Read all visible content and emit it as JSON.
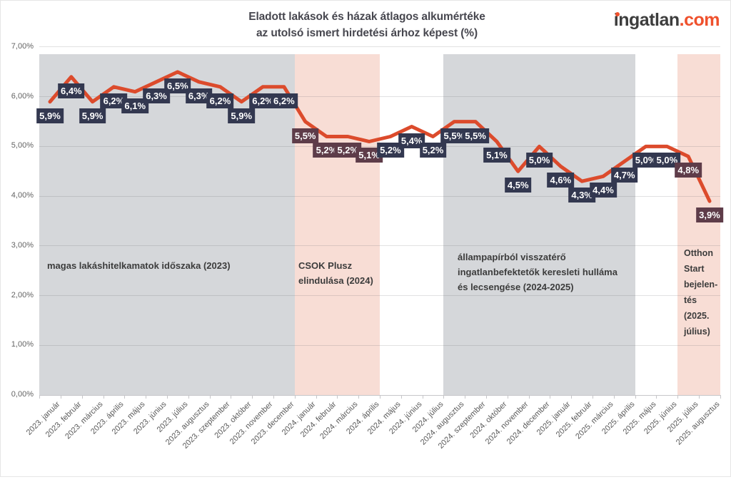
{
  "header": {
    "title_line1": "Eladott lakások és házak átlagos alkumértéke",
    "title_line2": "az utolsó ismert hirdetési árhoz képest (%)",
    "logo": {
      "brand": "ingatlan.com",
      "part1": "ingatlan",
      "part2": ".com",
      "accent_color": "#ef512d",
      "text_color": "#3d3d3d"
    }
  },
  "chart_data": {
    "type": "line",
    "title": "Eladott lakások és házak átlagos alkumértéke az utolsó ismert hirdetési árhoz képest (%)",
    "xlabel": "",
    "ylabel": "",
    "ylim": [
      0,
      7
    ],
    "grid": true,
    "legend": "none",
    "line_color": "#dc4b2c",
    "label_colors": {
      "default": "#333850",
      "highlight": "#5e3c49"
    },
    "x": [
      "2023. január",
      "2023. február",
      "2023. március",
      "2023. április",
      "2023. május",
      "2023. június",
      "2023. július",
      "2023. augusztus",
      "2023. szeptember",
      "2023. október",
      "2023. november",
      "2023. december",
      "2024. január",
      "2024. február",
      "2024. március",
      "2024. április",
      "2024. május",
      "2024. június",
      "2024. július",
      "2024. augusztus",
      "2024. szeptember",
      "2024. október",
      "2024. november",
      "2024. december",
      "2025. január",
      "2025. február",
      "2025. március",
      "2025. április",
      "2025. május",
      "2025. június",
      "2025. július",
      "2025. augusztus"
    ],
    "values": [
      5.9,
      6.4,
      5.9,
      6.2,
      6.1,
      6.3,
      6.5,
      6.3,
      6.2,
      5.9,
      6.2,
      6.2,
      5.5,
      5.2,
      5.2,
      5.1,
      5.2,
      5.4,
      5.2,
      5.5,
      5.5,
      5.1,
      4.5,
      5.0,
      4.6,
      4.3,
      4.4,
      4.7,
      5.0,
      5.0,
      4.8,
      3.9
    ],
    "value_labels": [
      "5,9%",
      "6,4%",
      "5,9%",
      "6,2%",
      "6,1%",
      "6,3%",
      "6,5%",
      "6,3%",
      "6,2%",
      "5,9%",
      "6,2%",
      "6,2%",
      "5,5%",
      "5,2%",
      "5,2%",
      "5,1%",
      "5,2%",
      "5,4%",
      "5,2%",
      "5,5%",
      "5,5%",
      "5,1%",
      "4,5%",
      "5,0%",
      "4,6%",
      "4,3%",
      "4,4%",
      "4,7%",
      "5,0%",
      "5,0%",
      "4,8%",
      "3,9%"
    ],
    "yticks": [
      {
        "label": "7,00%",
        "value": 7
      },
      {
        "label": "6,00%",
        "value": 6
      },
      {
        "label": "5,00%",
        "value": 5
      },
      {
        "label": "4,00%",
        "value": 4
      },
      {
        "label": "3,00%",
        "value": 3
      },
      {
        "label": "2,00%",
        "value": 2
      },
      {
        "label": "1,00%",
        "value": 1
      },
      {
        "label": "0,00%",
        "value": 0
      }
    ],
    "bands": [
      {
        "tone": "gray",
        "color": "#d5d7da",
        "start_index": 0,
        "end_index": 11,
        "from": "2023. január",
        "to": "2023. december",
        "annotation": "magas lakáshitelkamatok időszaka (2023)"
      },
      {
        "tone": "pink",
        "color": "#f8ddd5",
        "start_index": 12,
        "end_index": 15,
        "from": "2024. január",
        "to": "2024. április",
        "annotation": "CSOK Plusz\nelindulása (2024)"
      },
      {
        "tone": "gray",
        "color": "#d5d7da",
        "start_index": 19,
        "end_index": 27,
        "from": "2024. augusztus",
        "to": "2025. április",
        "annotation": "állampapírból visszatérő\ningatlanbefektetők keresleti hulláma\nés lecsengése (2024-2025)"
      },
      {
        "tone": "pink",
        "color": "#f8ddd5",
        "start_index": 30,
        "end_index": 31,
        "from": "2025. július",
        "to": "2025. augusztus",
        "annotation": "Otthon\nStart\nbejelen-\ntés\n(2025.\njúlius)"
      }
    ]
  }
}
